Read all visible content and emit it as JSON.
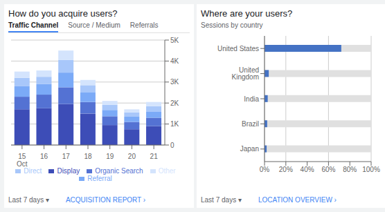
{
  "chart_data": [
    {
      "type": "bar",
      "stacked": true,
      "title": "How do you acquire users?",
      "annotations": [
        "Traffic Channel",
        "Source / Medium",
        "Referrals",
        "Last 7 days ▾",
        "ACQUISITION REPORT  ›"
      ],
      "categories": [
        "15\nOct",
        "16",
        "17",
        "18",
        "19",
        "20",
        "21"
      ],
      "series": [
        {
          "name": "Display",
          "color": "#3d4db7",
          "values": [
            1700,
            1750,
            1950,
            1500,
            950,
            750,
            900
          ]
        },
        {
          "name": "Organic Search",
          "color": "#5472d3",
          "values": [
            600,
            650,
            800,
            550,
            420,
            350,
            400
          ]
        },
        {
          "name": "Referral",
          "color": "#7baaf7",
          "values": [
            500,
            500,
            700,
            450,
            300,
            250,
            300
          ]
        },
        {
          "name": "Direct",
          "color": "#a8c7fa",
          "values": [
            400,
            350,
            600,
            350,
            250,
            200,
            250
          ]
        },
        {
          "name": "Other",
          "color": "#d4e4fd",
          "values": [
            300,
            300,
            450,
            250,
            180,
            150,
            200
          ]
        }
      ],
      "ylim": [
        0,
        5000
      ],
      "yticks": [
        0,
        {
          "value": 1000,
          "label": "1K"
        },
        {
          "value": 2000,
          "label": "2K"
        },
        {
          "value": 3000,
          "label": "3K"
        },
        {
          "value": 4000,
          "label": "4K"
        },
        {
          "value": 5000,
          "label": "5K"
        }
      ],
      "grid": true,
      "legend": "bottom"
    },
    {
      "type": "bar",
      "orientation": "horizontal",
      "title": "Where are your users?",
      "subtitle": "Sessions by country",
      "annotations": [
        "Last 7 days ▾",
        "LOCATION OVERVIEW  ›"
      ],
      "categories": [
        "United States",
        "United Kingdom",
        "India",
        "Brazil",
        "Japan"
      ],
      "values": [
        0.72,
        0.04,
        0.03,
        0.025,
        0.02
      ],
      "color": "#4472c4",
      "xlim": [
        0,
        1
      ],
      "xticks": [
        {
          "value": 0,
          "label": "0%"
        },
        {
          "value": 0.2,
          "label": "20%"
        },
        {
          "value": 0.4,
          "label": "40%"
        },
        {
          "value": 0.6,
          "label": "60%"
        },
        {
          "value": 0.8,
          "label": "80%"
        },
        {
          "value": 1,
          "label": "100%"
        }
      ],
      "grid": true
    }
  ]
}
